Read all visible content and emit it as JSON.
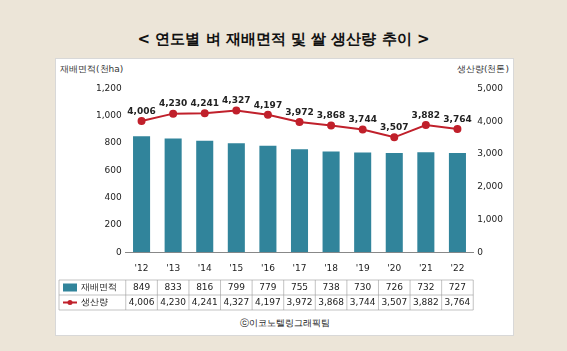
{
  "chart_data": {
    "type": "bar",
    "title": "< 연도별 벼 재배면적 및 쌀 생산량 추이 >",
    "ylabel": "재배면적(천ha)",
    "y2label": "생산량(천톤)",
    "credit": "ⓒ이코노텔링그래픽팀",
    "categories": [
      "'12",
      "'13",
      "'14",
      "'15",
      "'16",
      "'17",
      "'18",
      "'19",
      "'20",
      "'21",
      "'22"
    ],
    "series": [
      {
        "name": "재배면적",
        "type": "bar",
        "axis": "y",
        "color": "#31849b",
        "values": [
          849,
          833,
          816,
          799,
          779,
          755,
          738,
          730,
          726,
          732,
          727
        ]
      },
      {
        "name": "생산량",
        "type": "line",
        "axis": "y2",
        "color": "#c0202b",
        "marker": "circle",
        "data_labels": true,
        "values": [
          4006,
          4230,
          4241,
          4327,
          4197,
          3972,
          3868,
          3744,
          3507,
          3882,
          3764
        ],
        "value_labels": [
          "4,006",
          "4,230",
          "4,241",
          "4,327",
          "4,197",
          "3,972",
          "3,868",
          "3,744",
          "3,507",
          "3,882",
          "3,764"
        ]
      }
    ],
    "ylim": [
      0,
      1200
    ],
    "yticks": [
      0,
      200,
      400,
      600,
      800,
      {
        "value": 1000,
        "label": "1,000"
      },
      {
        "value": 1200,
        "label": "1,200"
      }
    ],
    "y2lim": [
      0,
      5000
    ],
    "y2ticks": [
      0,
      {
        "value": 1000,
        "label": "1,000"
      },
      {
        "value": 2000,
        "label": "2,000"
      },
      {
        "value": 3000,
        "label": "3,000"
      },
      {
        "value": 4000,
        "label": "4,000"
      },
      {
        "value": 5000,
        "label": "5,000"
      }
    ],
    "grid": false,
    "legend": "bottom"
  }
}
